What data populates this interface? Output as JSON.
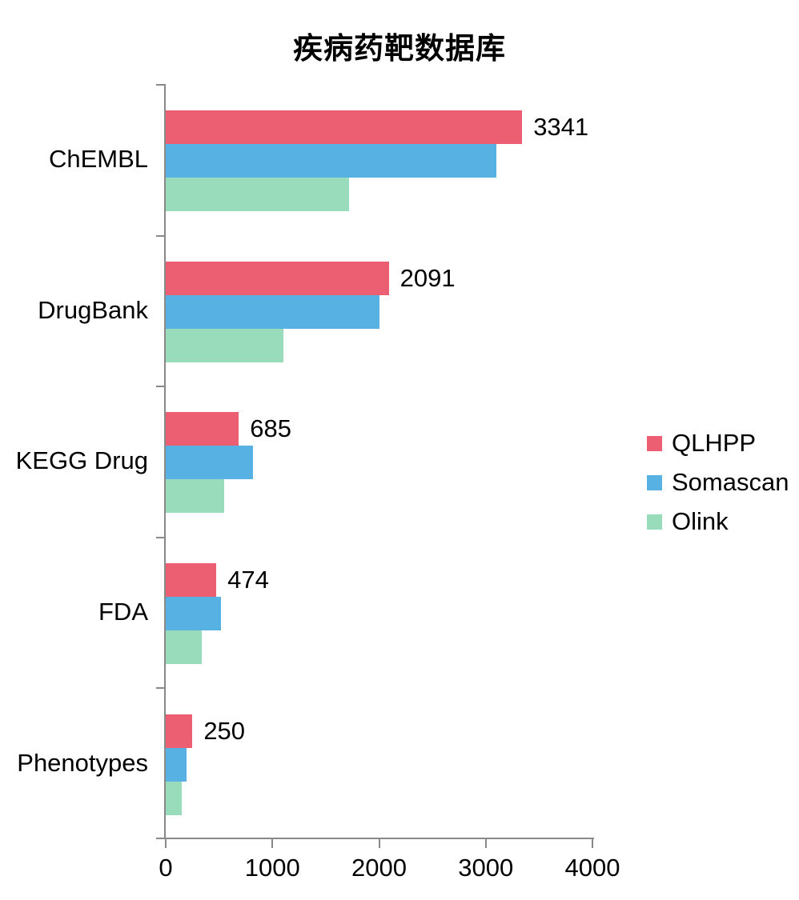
{
  "title": "疾病药靶数据库",
  "colors": {
    "qlhpp_red": "#EC5F72",
    "somascan_blue": "#57B2E3",
    "olink_green": "#98DCBC",
    "axis_gray": "#898989",
    "text": "#000000"
  },
  "chart_data": {
    "type": "bar",
    "orientation": "horizontal",
    "title": "疾病药靶数据库",
    "categories": [
      "ChEMBL",
      "DrugBank",
      "KEGG Drug",
      "FDA",
      "Phenotypes"
    ],
    "series": [
      {
        "name": "QLHPP",
        "color": "#EC5F72",
        "values": [
          3341,
          2091,
          685,
          474,
          250
        ]
      },
      {
        "name": "Somascan",
        "color": "#57B2E3",
        "values": [
          3100,
          2000,
          820,
          520,
          197
        ]
      },
      {
        "name": "Olink",
        "color": "#98DCBC",
        "values": [
          1715,
          1105,
          545,
          340,
          150
        ]
      }
    ],
    "data_labels": {
      "series": "QLHPP",
      "values": [
        "3341",
        "2091",
        "685",
        "474",
        "250"
      ]
    },
    "xlim": [
      0,
      4000
    ],
    "x_tick_labels": [
      "0",
      "1000",
      "2000",
      "3000",
      "4000"
    ],
    "x_tick_values": [
      0,
      1000,
      2000,
      3000,
      4000
    ],
    "grid": false,
    "legend_position": "right",
    "legend_items": [
      "QLHPP",
      "Somascan",
      "Olink"
    ]
  }
}
